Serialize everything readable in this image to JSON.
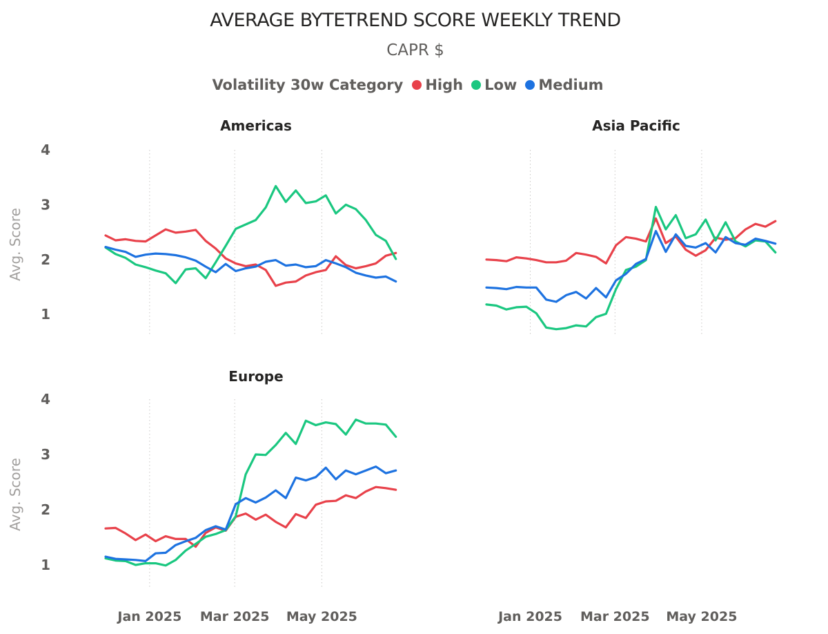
{
  "chart_data": {
    "type": "line",
    "title": "AVERAGE BYTETREND SCORE WEEKLY TREND",
    "subtitle": "CAPR $",
    "legend": {
      "title": "Volatility 30w Category",
      "position": "top-center",
      "entries": [
        {
          "name": "High",
          "color": "#e8414a"
        },
        {
          "name": "Low",
          "color": "#1ac780"
        },
        {
          "name": "Medium",
          "color": "#1d72e0"
        }
      ]
    },
    "x_unit": "weeks since 2024-12-02",
    "x_ticks": [
      {
        "value": 4.4,
        "label": "Jan 2025"
      },
      {
        "value": 12.9,
        "label": "Mar 2025"
      },
      {
        "value": 21.6,
        "label": "May 2025"
      }
    ],
    "xlim": [
      0,
      29.5
    ],
    "ylabel": "Avg. Score",
    "y_ticks": [
      1,
      2,
      3,
      4
    ],
    "ylim": [
      0.6,
      4
    ],
    "x_grid": "dotted",
    "y_grid": false,
    "panels": [
      {
        "title": "Americas",
        "series": [
          {
            "name": "High",
            "values": [
              2.44,
              2.35,
              2.37,
              2.34,
              2.33,
              2.44,
              2.55,
              2.49,
              2.51,
              2.54,
              2.34,
              2.2,
              2.02,
              1.93,
              1.88,
              1.91,
              1.81,
              1.52,
              1.58,
              1.6,
              1.71,
              1.77,
              1.81,
              2.06,
              1.9,
              1.84,
              1.88,
              1.93,
              2.07,
              2.12
            ]
          },
          {
            "name": "Low",
            "values": [
              2.22,
              2.1,
              2.03,
              1.91,
              1.86,
              1.8,
              1.75,
              1.57,
              1.82,
              1.84,
              1.66,
              1.95,
              2.25,
              2.56,
              2.64,
              2.72,
              2.95,
              3.34,
              3.05,
              3.26,
              3.03,
              3.06,
              3.17,
              2.84,
              3.0,
              2.92,
              2.72,
              2.45,
              2.34,
              2.01
            ]
          },
          {
            "name": "Medium",
            "values": [
              2.23,
              2.18,
              2.14,
              2.05,
              2.09,
              2.11,
              2.1,
              2.08,
              2.04,
              1.98,
              1.87,
              1.77,
              1.92,
              1.79,
              1.84,
              1.87,
              1.96,
              1.99,
              1.89,
              1.91,
              1.86,
              1.88,
              1.99,
              1.93,
              1.86,
              1.76,
              1.71,
              1.67,
              1.69,
              1.6
            ]
          }
        ]
      },
      {
        "title": "Asia Pacific",
        "series": [
          {
            "name": "High",
            "values": [
              2.0,
              1.99,
              1.97,
              2.04,
              2.02,
              1.99,
              1.95,
              1.95,
              1.98,
              2.12,
              2.09,
              2.05,
              1.93,
              2.26,
              2.41,
              2.38,
              2.33,
              2.75,
              2.3,
              2.42,
              2.18,
              2.07,
              2.17,
              2.4,
              2.36,
              2.39,
              2.55,
              2.65,
              2.6,
              2.7
            ]
          },
          {
            "name": "Low",
            "values": [
              1.18,
              1.16,
              1.09,
              1.13,
              1.14,
              1.02,
              0.76,
              0.73,
              0.75,
              0.8,
              0.78,
              0.95,
              1.01,
              1.46,
              1.81,
              1.87,
              1.99,
              2.96,
              2.55,
              2.81,
              2.39,
              2.46,
              2.73,
              2.35,
              2.68,
              2.33,
              2.24,
              2.35,
              2.33,
              2.13
            ]
          },
          {
            "name": "Medium",
            "values": [
              1.49,
              1.48,
              1.46,
              1.5,
              1.49,
              1.49,
              1.27,
              1.23,
              1.35,
              1.41,
              1.29,
              1.48,
              1.31,
              1.62,
              1.74,
              1.92,
              2.01,
              2.52,
              2.14,
              2.46,
              2.25,
              2.22,
              2.3,
              2.13,
              2.41,
              2.3,
              2.27,
              2.38,
              2.34,
              2.29
            ]
          }
        ]
      },
      {
        "title": "Europe",
        "series": [
          {
            "name": "High",
            "values": [
              1.66,
              1.67,
              1.57,
              1.45,
              1.55,
              1.43,
              1.52,
              1.47,
              1.47,
              1.33,
              1.58,
              1.68,
              1.62,
              1.87,
              1.93,
              1.82,
              1.91,
              1.78,
              1.68,
              1.92,
              1.85,
              2.09,
              2.15,
              2.16,
              2.26,
              2.21,
              2.33,
              2.41,
              2.39,
              2.36
            ]
          },
          {
            "name": "Low",
            "values": [
              1.12,
              1.08,
              1.07,
              1.0,
              1.03,
              1.03,
              0.99,
              1.09,
              1.26,
              1.38,
              1.51,
              1.56,
              1.63,
              1.88,
              2.64,
              3.0,
              2.99,
              3.17,
              3.39,
              3.19,
              3.61,
              3.53,
              3.58,
              3.55,
              3.36,
              3.63,
              3.56,
              3.56,
              3.54,
              3.32
            ]
          },
          {
            "name": "Medium",
            "values": [
              1.15,
              1.11,
              1.1,
              1.09,
              1.07,
              1.21,
              1.22,
              1.36,
              1.43,
              1.49,
              1.63,
              1.7,
              1.64,
              2.1,
              2.21,
              2.13,
              2.22,
              2.35,
              2.21,
              2.58,
              2.53,
              2.59,
              2.76,
              2.55,
              2.71,
              2.64,
              2.71,
              2.78,
              2.66,
              2.71
            ]
          }
        ]
      }
    ]
  }
}
